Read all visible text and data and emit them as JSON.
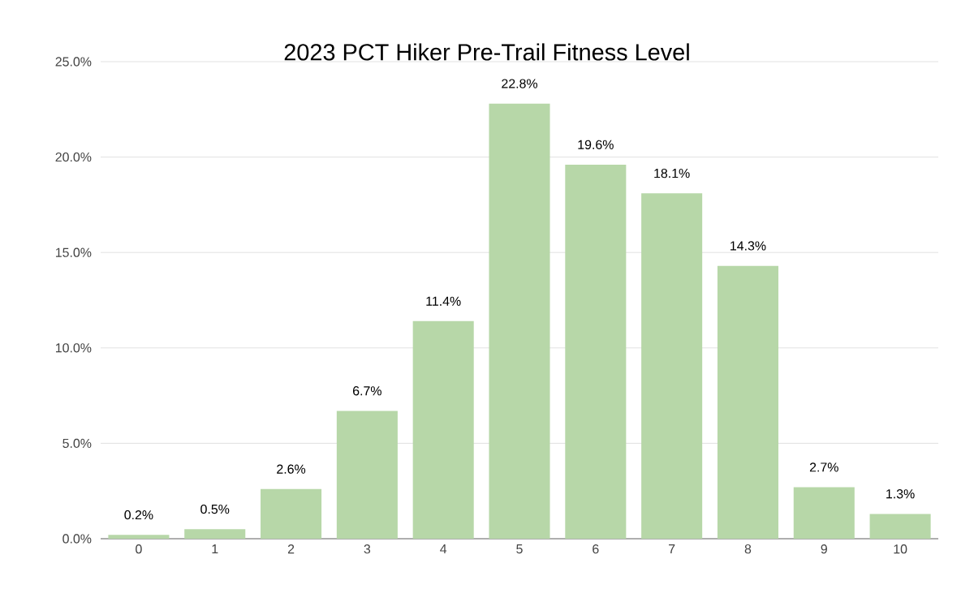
{
  "chart_data": {
    "type": "bar",
    "title": "2023 PCT Hiker Pre-Trail Fitness Level",
    "categories": [
      "0",
      "1",
      "2",
      "3",
      "4",
      "5",
      "6",
      "7",
      "8",
      "9",
      "10"
    ],
    "values": [
      0.2,
      0.5,
      2.6,
      6.7,
      11.4,
      22.8,
      19.6,
      18.1,
      14.3,
      2.7,
      1.3
    ],
    "value_labels": [
      "0.2%",
      "0.5%",
      "2.6%",
      "6.7%",
      "11.4%",
      "22.8%",
      "19.6%",
      "18.1%",
      "14.3%",
      "2.7%",
      "1.3%"
    ],
    "color": "#b7d7a8",
    "ylim": [
      0,
      25
    ],
    "yticks": [
      {
        "value": 0,
        "label": "0.0%"
      },
      {
        "value": 5,
        "label": "5.0%"
      },
      {
        "value": 10,
        "label": "10.0%"
      },
      {
        "value": 15,
        "label": "15.0%"
      },
      {
        "value": 20,
        "label": "20.0%"
      },
      {
        "value": 25,
        "label": "25.0%"
      }
    ],
    "grid": "y"
  }
}
